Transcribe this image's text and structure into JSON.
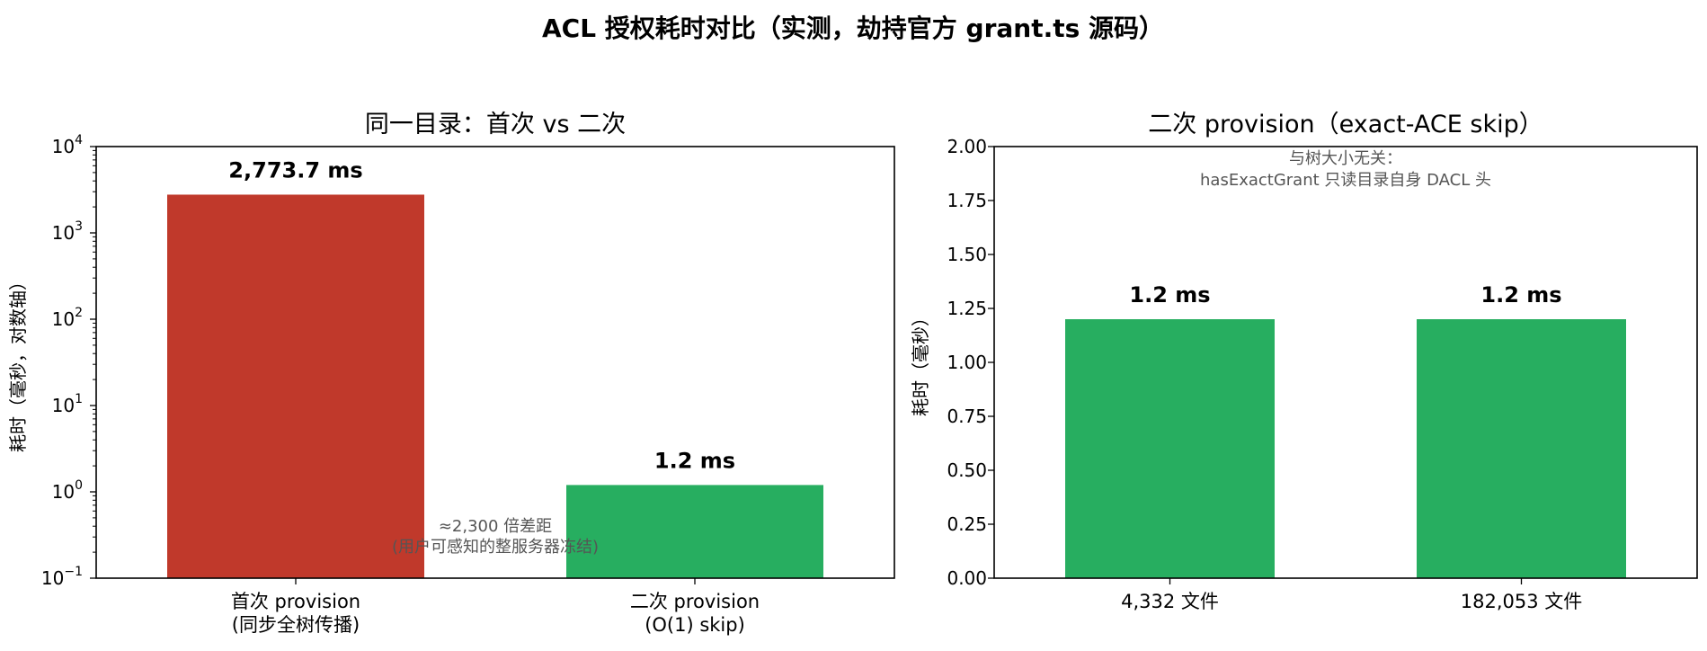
{
  "figure": {
    "title": "ACL 授权耗时对比（实测，劫持官方 grant.ts 源码）"
  },
  "chart_data": [
    {
      "type": "bar",
      "title": "同一目录：首次 vs 二次",
      "xlabel": "",
      "ylabel": "耗时（毫秒，对数轴）",
      "yscale": "log",
      "ylim": [
        0.1,
        10000
      ],
      "yticks": [
        0.1,
        1,
        10,
        100,
        1000,
        10000
      ],
      "ytick_labels": [
        {
          "base": "10",
          "exp": "−1"
        },
        {
          "base": "10",
          "exp": "0"
        },
        {
          "base": "10",
          "exp": "1"
        },
        {
          "base": "10",
          "exp": "2"
        },
        {
          "base": "10",
          "exp": "3"
        },
        {
          "base": "10",
          "exp": "4"
        }
      ],
      "categories": [
        [
          "首次 provision",
          "(同步全树传播)"
        ],
        [
          "二次 provision",
          "(O(1) skip)"
        ]
      ],
      "values": [
        2773.7,
        1.2
      ],
      "value_labels": [
        "2,773.7 ms",
        "1.2 ms"
      ],
      "colors": [
        "#c0392b",
        "#27ae60"
      ],
      "annotation": [
        "≈2,300 倍差距",
        "(用户可感知的整服务器冻结)"
      ],
      "grid": false
    },
    {
      "type": "bar",
      "title": "二次 provision（exact-ACE skip）",
      "xlabel": "",
      "ylabel": "耗时（毫秒）",
      "yscale": "linear",
      "ylim": [
        0,
        2.0
      ],
      "yticks": [
        0,
        0.25,
        0.5,
        0.75,
        1.0,
        1.25,
        1.5,
        1.75,
        2.0
      ],
      "ytick_labels": [
        "0.00",
        "0.25",
        "0.50",
        "0.75",
        "1.00",
        "1.25",
        "1.50",
        "1.75",
        "2.00"
      ],
      "categories": [
        [
          "4,332 文件"
        ],
        [
          "182,053 文件"
        ]
      ],
      "values": [
        1.2,
        1.2
      ],
      "value_labels": [
        "1.2 ms",
        "1.2 ms"
      ],
      "colors": [
        "#27ae60",
        "#27ae60"
      ],
      "annotation": [
        "与树大小无关：",
        "hasExactGrant 只读目录自身 DACL 头"
      ],
      "grid": false
    }
  ]
}
